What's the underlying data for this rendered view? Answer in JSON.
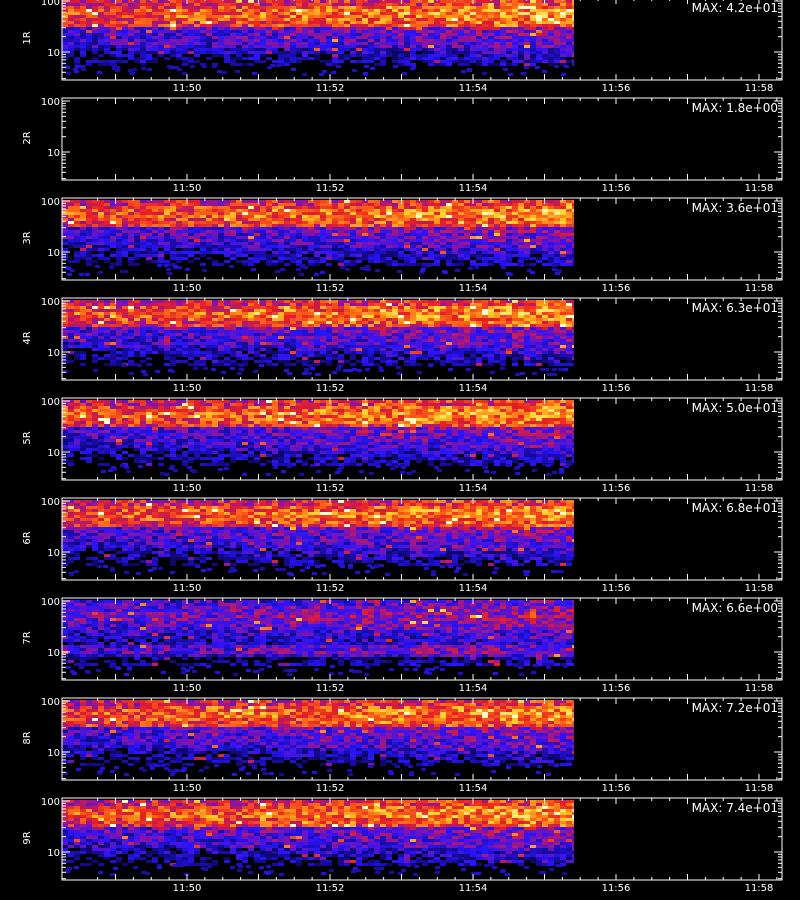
{
  "chart_data": {
    "type": "heatmap",
    "colormap": "black-blue-red-yellow-white",
    "x_ticks": [
      "11:50",
      "11:52",
      "11:54",
      "11:56",
      "11:58"
    ],
    "y_ticks": [
      "10",
      "100"
    ],
    "y_scale": "log",
    "data_end_time": "11:55:25",
    "x_label": "",
    "panels": [
      {
        "label": "1R",
        "max_label": "MAX: 4.2e+01",
        "max": 42,
        "bands": "dense-upper"
      },
      {
        "label": "2R",
        "max_label": "MAX: 1.8e+00",
        "max": 1.8,
        "bands": "empty"
      },
      {
        "label": "3R",
        "max_label": "MAX: 3.6e+01",
        "max": 36,
        "bands": "dense-upper"
      },
      {
        "label": "4R",
        "max_label": "MAX: 6.3e+01",
        "max": 63,
        "bands": "dense-upper"
      },
      {
        "label": "5R",
        "max_label": "MAX: 5.0e+01",
        "max": 50,
        "bands": "dense-upper"
      },
      {
        "label": "6R",
        "max_label": "MAX: 6.8e+01",
        "max": 68,
        "bands": "dense-upper"
      },
      {
        "label": "7R",
        "max_label": "MAX: 6.6e+00",
        "max": 6.6,
        "bands": "diffuse"
      },
      {
        "label": "8R",
        "max_label": "MAX: 7.2e+01",
        "max": 72,
        "bands": "dense-upper"
      },
      {
        "label": "9R",
        "max_label": "MAX: 7.4e+01",
        "max": 74,
        "bands": "dense-upper"
      }
    ]
  }
}
